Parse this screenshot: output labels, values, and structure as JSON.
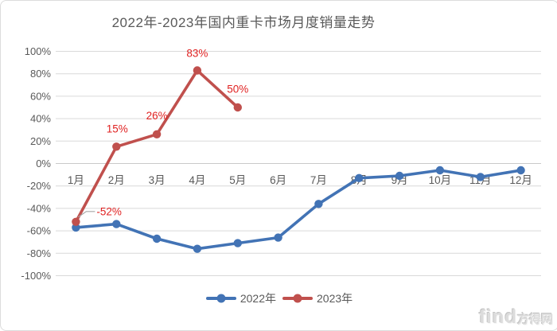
{
  "chart_data": {
    "type": "line",
    "title": "2022年-2023年国内重卡市场月度销量走势",
    "xlabel": "",
    "ylabel": "",
    "categories": [
      "1月",
      "2月",
      "3月",
      "4月",
      "5月",
      "6月",
      "7月",
      "8月",
      "9月",
      "10月",
      "11月",
      "12月"
    ],
    "series": [
      {
        "name": "2022年",
        "color": "#4273b5",
        "values": [
          -57,
          -54,
          -67,
          -76,
          -71,
          -66,
          -36,
          -13,
          -11,
          -6,
          -12,
          -6
        ]
      },
      {
        "name": "2023年",
        "color": "#c0504d",
        "values": [
          -52,
          15,
          26,
          83,
          50
        ],
        "point_labels": [
          "-52%",
          "15%",
          "26%",
          "83%",
          "50%"
        ],
        "label_color": "#e02222"
      }
    ],
    "ylim": [
      -100,
      100
    ],
    "yticks": [
      100,
      80,
      60,
      40,
      20,
      0,
      -20,
      -40,
      -60,
      -80,
      -100
    ],
    "ytick_suffix": "%",
    "grid": true,
    "legend_position": "bottom",
    "colors": {
      "gridline": "#d9d9d9",
      "zero_line": "#c9c9c9",
      "axis_text": "#595959",
      "title_text": "#595959",
      "leader_line": "#a6a6a6"
    }
  },
  "watermark": {
    "latin": "find",
    "cjk": "方得网"
  }
}
